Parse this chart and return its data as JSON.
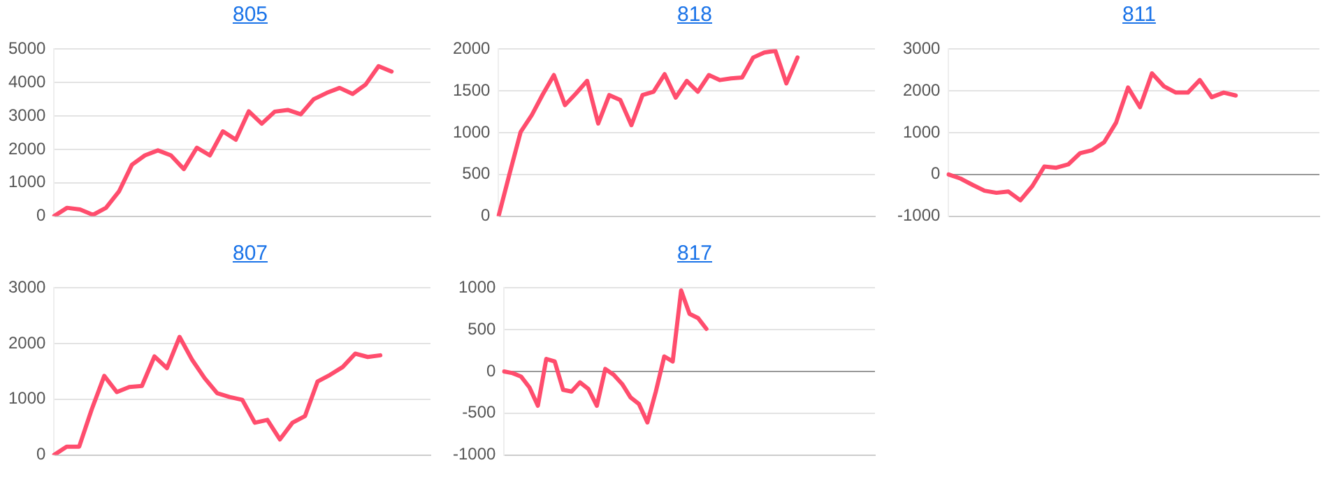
{
  "chart_data": [
    {
      "type": "line",
      "title": "805",
      "categories": [
        null,
        null,
        null,
        null,
        null,
        null,
        null,
        null,
        null,
        null,
        null,
        null,
        null,
        null,
        null,
        null,
        null,
        null,
        null,
        null,
        null,
        null,
        null,
        null,
        null,
        null,
        null,
        null,
        null,
        null
      ],
      "series": [
        {
          "color": "#ff4d6d",
          "values": [
            0,
            250,
            200,
            40,
            250,
            740,
            1540,
            1820,
            1970,
            1820,
            1410,
            2050,
            1820,
            2540,
            2290,
            3140,
            2770,
            3130,
            3180,
            3050,
            3500,
            3690,
            3840,
            3660,
            3940,
            4490,
            4330,
            null,
            null,
            null
          ]
        }
      ],
      "ylim": [
        0,
        5000
      ],
      "yticks": [
        0,
        1000,
        2000,
        3000,
        4000,
        5000
      ],
      "grid": "y",
      "tick_labels": "y"
    },
    {
      "type": "line",
      "title": "818",
      "categories": [
        null,
        null,
        null,
        null,
        null,
        null,
        null,
        null,
        null,
        null,
        null,
        null,
        null,
        null,
        null,
        null,
        null,
        null,
        null,
        null,
        null,
        null,
        null,
        null,
        null,
        null,
        null,
        null,
        null,
        null,
        null,
        null,
        null,
        null,
        null
      ],
      "series": [
        {
          "color": "#ff4d6d",
          "values": [
            0,
            510,
            1010,
            1210,
            1460,
            1690,
            1330,
            1470,
            1620,
            1110,
            1450,
            1390,
            1090,
            1450,
            1490,
            1700,
            1420,
            1620,
            1490,
            1690,
            1630,
            1650,
            1660,
            1900,
            1960,
            1980,
            1590,
            1900,
            null,
            null,
            null,
            null,
            null,
            null,
            null
          ]
        }
      ],
      "ylim": [
        0,
        2000
      ],
      "yticks": [
        0,
        500,
        1000,
        1500,
        2000
      ],
      "grid": "y",
      "tick_labels": "y"
    },
    {
      "type": "line",
      "title": "811",
      "categories": [
        null,
        null,
        null,
        null,
        null,
        null,
        null,
        null,
        null,
        null,
        null,
        null,
        null,
        null,
        null,
        null,
        null,
        null,
        null,
        null,
        null,
        null,
        null,
        null,
        null,
        null,
        null,
        null,
        null,
        null,
        null,
        null
      ],
      "series": [
        {
          "color": "#ff4d6d",
          "values": [
            0,
            -100,
            -250,
            -390,
            -440,
            -410,
            -620,
            -280,
            190,
            160,
            240,
            510,
            580,
            770,
            1240,
            2080,
            1610,
            2420,
            2110,
            1960,
            1960,
            2260,
            1850,
            1960,
            1890,
            null,
            null,
            null,
            null,
            null,
            null,
            null
          ]
        }
      ],
      "ylim": [
        -1000,
        3000
      ],
      "yticks": [
        -1000,
        0,
        1000,
        2000,
        3000
      ],
      "grid": "y",
      "tick_labels": "y"
    },
    {
      "type": "line",
      "title": "807",
      "categories": [
        null,
        null,
        null,
        null,
        null,
        null,
        null,
        null,
        null,
        null,
        null,
        null,
        null,
        null,
        null,
        null,
        null,
        null,
        null,
        null,
        null,
        null,
        null,
        null,
        null,
        null,
        null,
        null,
        null,
        null,
        null
      ],
      "series": [
        {
          "color": "#ff4d6d",
          "values": [
            0,
            150,
            150,
            820,
            1420,
            1130,
            1220,
            1240,
            1770,
            1560,
            2120,
            1710,
            1380,
            1110,
            1040,
            990,
            580,
            630,
            280,
            580,
            700,
            1320,
            1440,
            1580,
            1820,
            1760,
            1790,
            null,
            null,
            null,
            null
          ]
        }
      ],
      "ylim": [
        0,
        3000
      ],
      "yticks": [
        0,
        1000,
        2000,
        3000
      ],
      "grid": "y",
      "tick_labels": "y"
    },
    {
      "type": "line",
      "title": "817",
      "categories": [
        null,
        null,
        null,
        null,
        null,
        null,
        null,
        null,
        null,
        null,
        null,
        null,
        null,
        null,
        null,
        null,
        null,
        null,
        null,
        null,
        null,
        null,
        null,
        null,
        null,
        null,
        null,
        null,
        null,
        null,
        null,
        null,
        null,
        null,
        null,
        null,
        null,
        null,
        null,
        null,
        null,
        null,
        null,
        null,
        null
      ],
      "series": [
        {
          "color": "#ff4d6d",
          "values": [
            0,
            -20,
            -60,
            -190,
            -410,
            150,
            120,
            -220,
            -240,
            -130,
            -210,
            -410,
            30,
            -40,
            -150,
            -310,
            -390,
            -610,
            -240,
            180,
            120,
            970,
            690,
            640,
            510,
            null,
            null,
            null,
            null,
            null,
            null,
            null,
            null,
            null,
            null,
            null,
            null,
            null,
            null,
            null,
            null,
            null,
            null,
            null,
            null
          ]
        }
      ],
      "ylim": [
        -1000,
        1000
      ],
      "yticks": [
        -1000,
        -500,
        0,
        500,
        1000
      ],
      "grid": "y",
      "tick_labels": "y"
    }
  ]
}
